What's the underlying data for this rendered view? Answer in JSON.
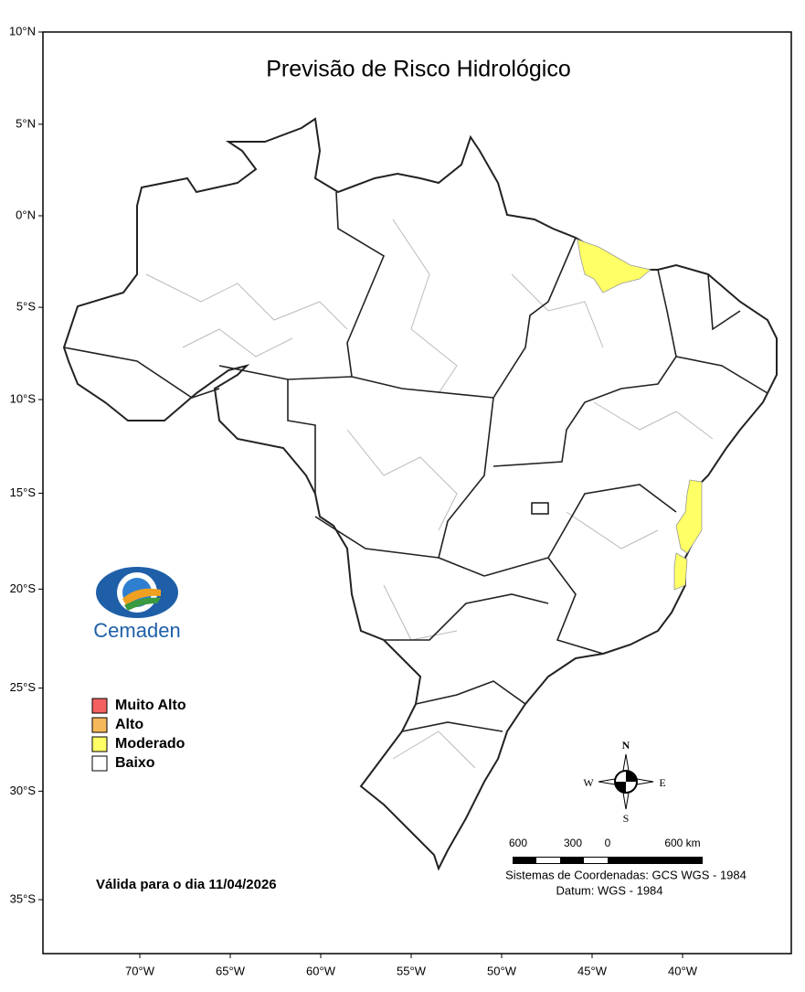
{
  "title": "Previsão de Risco Hidrológico",
  "lat_ticks": [
    {
      "value": 10,
      "label": "10°N"
    },
    {
      "value": 5,
      "label": "5°N"
    },
    {
      "value": 0,
      "label": "0°N"
    },
    {
      "value": -5,
      "label": "5°S"
    },
    {
      "value": -10,
      "label": "10°S"
    },
    {
      "value": -15,
      "label": "15°S"
    },
    {
      "value": -20,
      "label": "20°S"
    },
    {
      "value": -25,
      "label": "25°S"
    },
    {
      "value": -30,
      "label": "30°S"
    },
    {
      "value": -35,
      "label": "35°S"
    }
  ],
  "lon_ticks": [
    {
      "value": -70,
      "label": "70°W"
    },
    {
      "value": -65,
      "label": "65°W"
    },
    {
      "value": -60,
      "label": "60°W"
    },
    {
      "value": -55,
      "label": "55°W"
    },
    {
      "value": -50,
      "label": "50°W"
    },
    {
      "value": -45,
      "label": "45°W"
    },
    {
      "value": -40,
      "label": "40°W"
    }
  ],
  "legend": [
    {
      "label": "Muito Alto",
      "color": "#f26060"
    },
    {
      "label": "Alto",
      "color": "#f6b95a"
    },
    {
      "label": "Moderado",
      "color": "#ffff66"
    },
    {
      "label": "Baixo",
      "color": "#ffffff"
    }
  ],
  "validity": "Válida para o dia 11/04/2026",
  "scale_labels": [
    "600",
    "300",
    "0",
    "600 km"
  ],
  "coordinate_system": "Sistemas de Coordenadas: GCS WGS - 1984",
  "datum": "Datum: WGS - 1984",
  "compass": {
    "n": "N",
    "s": "S",
    "e": "E",
    "w": "W"
  },
  "logo": "Cemaden"
}
